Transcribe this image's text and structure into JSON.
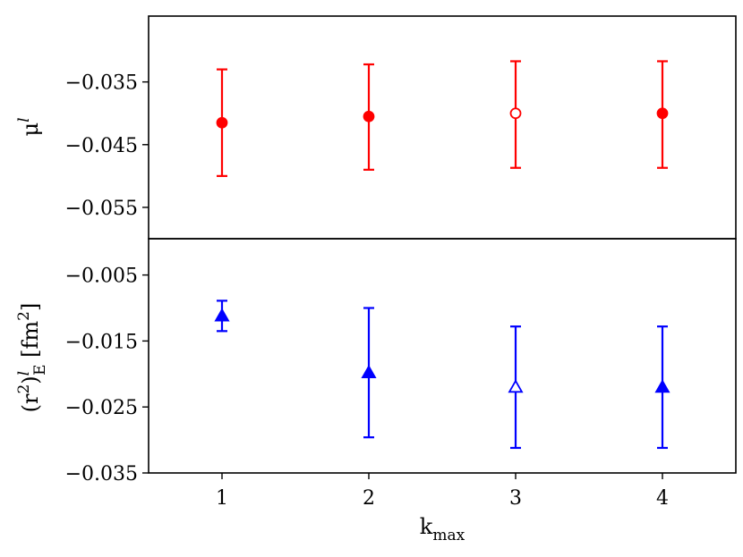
{
  "chart_data": [
    {
      "type": "scatter",
      "panel": "top",
      "title": "",
      "ylabel_parts": {
        "base": "μ",
        "sup": "l"
      },
      "ylim": [
        -0.06,
        -0.0245
      ],
      "yticks": [
        -0.035,
        -0.045,
        -0.055
      ],
      "ytick_labels": [
        "−0.035",
        "−0.045",
        "−0.055"
      ],
      "color": "#ff0000",
      "marker": "circle",
      "series": [
        {
          "points": [
            {
              "x": 1,
              "y": -0.0415,
              "err_low": -0.05,
              "err_high": -0.033,
              "filled": true
            },
            {
              "x": 2,
              "y": -0.0405,
              "err_low": -0.049,
              "err_high": -0.0322,
              "filled": true
            },
            {
              "x": 3,
              "y": -0.04,
              "err_low": -0.0487,
              "err_high": -0.0317,
              "filled": false
            },
            {
              "x": 4,
              "y": -0.04,
              "err_low": -0.0487,
              "err_high": -0.0317,
              "filled": true
            }
          ]
        }
      ],
      "grid": false
    },
    {
      "type": "scatter",
      "panel": "bottom",
      "title": "",
      "ylabel_parts": {
        "open": "(r",
        "sup1": "2",
        "close": ")",
        "sup2": "l",
        "sub": "E",
        "unit_open": " [fm",
        "unit_sup": "2",
        "unit_close": "]"
      },
      "ylim": [
        -0.035,
        0.0005
      ],
      "yticks": [
        -0.005,
        -0.015,
        -0.025,
        -0.035
      ],
      "ytick_labels": [
        "−0.005",
        "−0.015",
        "−0.025",
        "−0.035"
      ],
      "xlim": [
        0.5,
        4.5
      ],
      "xticks": [
        1,
        2,
        3,
        4
      ],
      "xtick_labels": [
        "1",
        "2",
        "3",
        "4"
      ],
      "xlabel_parts": {
        "base": "k",
        "sub": "max"
      },
      "color": "#0000ff",
      "marker": "triangle",
      "series": [
        {
          "points": [
            {
              "x": 1,
              "y": -0.0112,
              "err_low": -0.0135,
              "err_high": -0.0089,
              "filled": true
            },
            {
              "x": 2,
              "y": -0.0198,
              "err_low": -0.0296,
              "err_high": -0.01,
              "filled": true
            },
            {
              "x": 3,
              "y": -0.022,
              "err_low": -0.0312,
              "err_high": -0.0128,
              "filled": false
            },
            {
              "x": 4,
              "y": -0.022,
              "err_low": -0.0312,
              "err_high": -0.0128,
              "filled": true
            }
          ]
        }
      ],
      "grid": false
    }
  ]
}
